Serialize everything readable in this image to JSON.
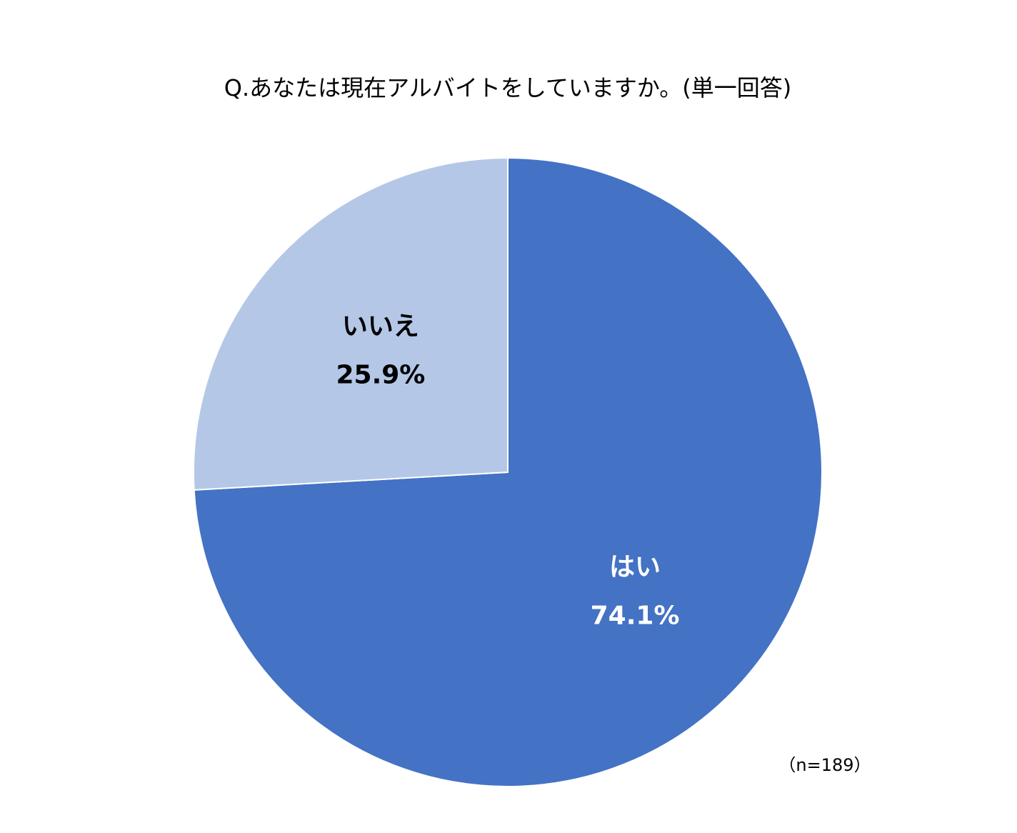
{
  "chart_data": {
    "type": "pie",
    "title": "Q.あなたは現在アルバイトをしていますか。(単一回答)",
    "categories": [
      "はい",
      "いいえ"
    ],
    "values": [
      74.1,
      25.9
    ],
    "value_labels": [
      "74.1%",
      "25.9%"
    ],
    "colors": [
      "#4472c4",
      "#b4c7e7"
    ],
    "label_colors": [
      "#ffffff",
      "#000000"
    ],
    "annotation": "（n=189）"
  }
}
